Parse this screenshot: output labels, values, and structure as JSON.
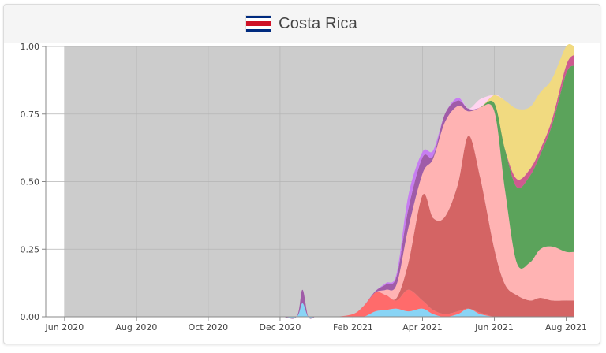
{
  "header": {
    "country": "Costa Rica",
    "flag_colors": [
      "#002b7f",
      "#ffffff",
      "#ce1126",
      "#ffffff",
      "#002b7f"
    ]
  },
  "chart_data": {
    "type": "area",
    "stacked": true,
    "title": "Costa Rica",
    "xlabel": "",
    "ylabel": "",
    "x_dates": [
      "2020-05-16",
      "2020-06-01",
      "2020-07-01",
      "2020-08-01",
      "2020-09-01",
      "2020-10-01",
      "2020-11-01",
      "2020-12-01",
      "2020-12-15",
      "2020-12-20",
      "2020-12-25",
      "2021-01-01",
      "2021-01-15",
      "2021-02-01",
      "2021-02-10",
      "2021-02-20",
      "2021-03-01",
      "2021-03-10",
      "2021-03-20",
      "2021-04-01",
      "2021-04-10",
      "2021-04-20",
      "2021-05-01",
      "2021-05-10",
      "2021-05-20",
      "2021-06-01",
      "2021-06-10",
      "2021-06-20",
      "2021-07-01",
      "2021-07-10",
      "2021-07-20",
      "2021-08-01",
      "2021-08-08"
    ],
    "xlim": [
      "2020-05-16",
      "2021-08-08"
    ],
    "ylim": [
      0,
      1
    ],
    "x_ticks": [
      {
        "date": "2020-06-01",
        "label": "Jun 2020"
      },
      {
        "date": "2020-08-01",
        "label": "Aug 2020"
      },
      {
        "date": "2020-10-01",
        "label": "Oct 2020"
      },
      {
        "date": "2020-12-01",
        "label": "Dec 2020"
      },
      {
        "date": "2021-02-01",
        "label": "Feb 2021"
      },
      {
        "date": "2021-04-01",
        "label": "Apr 2021"
      },
      {
        "date": "2021-06-01",
        "label": "Jun 2021"
      },
      {
        "date": "2021-08-01",
        "label": "Aug 2021"
      }
    ],
    "y_ticks": [
      {
        "value": 0,
        "label": "0.00"
      },
      {
        "value": 0.25,
        "label": "0.25"
      },
      {
        "value": 0.5,
        "label": "0.50"
      },
      {
        "value": 0.75,
        "label": "0.75"
      },
      {
        "value": 1,
        "label": "1.00"
      }
    ],
    "no_data_shading": {
      "from": "2020-06-01",
      "to": "2021-08-08",
      "color": "#cccccc"
    },
    "grid": true,
    "legend": "none",
    "series": [
      {
        "color": "#89d4f5",
        "values": [
          0,
          0,
          0,
          0,
          0,
          0,
          0,
          0,
          0,
          0.05,
          0,
          0,
          0,
          0,
          0,
          0.02,
          0.025,
          0.03,
          0.02,
          0.03,
          0.01,
          0,
          0.01,
          0.03,
          0.01,
          0,
          0,
          0,
          0,
          0,
          0,
          0,
          0
        ]
      },
      {
        "color": "#ff6b6b",
        "values": [
          0,
          0,
          0,
          0,
          0,
          0,
          0,
          0,
          0,
          0,
          0,
          0,
          0,
          0.01,
          0.04,
          0.07,
          0.055,
          0.03,
          0.08,
          0.03,
          0.015,
          0.01,
          0.01,
          0,
          0.005,
          0,
          0,
          0,
          0,
          0,
          0,
          0,
          0
        ]
      },
      {
        "color": "#d46464",
        "values": [
          0,
          0,
          0,
          0,
          0,
          0,
          0,
          0,
          0,
          0,
          0,
          0,
          0,
          0,
          0,
          0,
          0,
          0.01,
          0.1,
          0.39,
          0.34,
          0.36,
          0.47,
          0.64,
          0.5,
          0.25,
          0.12,
          0.08,
          0.06,
          0.07,
          0.06,
          0.06,
          0.06
        ]
      },
      {
        "color": "#ffb3b3",
        "values": [
          0,
          0,
          0,
          0,
          0,
          0,
          0,
          0,
          0,
          0,
          0,
          0,
          0,
          0,
          0,
          0,
          0.02,
          0.05,
          0.13,
          0.08,
          0.22,
          0.35,
          0.29,
          0.09,
          0.26,
          0.51,
          0.35,
          0.12,
          0.14,
          0.18,
          0.2,
          0.18,
          0.18
        ]
      },
      {
        "color": "#5ba35b",
        "values": [
          0,
          0,
          0,
          0,
          0,
          0,
          0,
          0,
          0,
          0,
          0,
          0,
          0,
          0,
          0,
          0,
          0,
          0,
          0,
          0,
          0,
          0,
          0,
          0,
          0,
          0.03,
          0.15,
          0.28,
          0.32,
          0.35,
          0.45,
          0.66,
          0.69
        ]
      },
      {
        "color": "#ce5a8f",
        "values": [
          0,
          0,
          0,
          0,
          0,
          0,
          0,
          0,
          0,
          0,
          0,
          0,
          0,
          0,
          0,
          0,
          0,
          0,
          0,
          0,
          0,
          0,
          0,
          0,
          0,
          0,
          0,
          0.03,
          0.025,
          0.02,
          0.02,
          0.03,
          0.04
        ]
      },
      {
        "color": "#f1da80",
        "values": [
          0,
          0,
          0,
          0,
          0,
          0,
          0,
          0,
          0,
          0,
          0,
          0,
          0,
          0,
          0,
          0,
          0,
          0,
          0,
          0,
          0,
          0,
          0,
          0,
          0,
          0.03,
          0.18,
          0.26,
          0.23,
          0.21,
          0.15,
          0.07,
          0.03
        ]
      },
      {
        "color": "#a05ca8",
        "values": [
          0,
          0,
          0,
          0,
          0,
          0,
          0,
          0,
          0,
          0.05,
          0,
          0,
          0,
          0,
          0,
          0.005,
          0.02,
          0.03,
          0.07,
          0.06,
          0.01,
          0.03,
          0.02,
          0.01,
          0,
          0,
          0,
          0,
          0,
          0,
          0,
          0,
          0
        ]
      },
      {
        "color": "#c77df2",
        "values": [
          0,
          0,
          0,
          0,
          0,
          0,
          0,
          0,
          0,
          0,
          0,
          0,
          0,
          0,
          0,
          0,
          0.005,
          0.01,
          0.05,
          0.02,
          0.02,
          0,
          0.01,
          0,
          0,
          0,
          0,
          0,
          0,
          0,
          0,
          0,
          0
        ]
      },
      {
        "color": "#ffd4f0",
        "values": [
          0,
          0,
          0,
          0,
          0,
          0,
          0,
          0,
          0,
          0,
          0,
          0,
          0,
          0,
          0,
          0,
          0,
          0,
          0,
          0,
          0,
          0,
          0,
          0,
          0.03,
          0,
          0,
          0,
          0,
          0,
          0,
          0,
          0
        ]
      }
    ]
  }
}
